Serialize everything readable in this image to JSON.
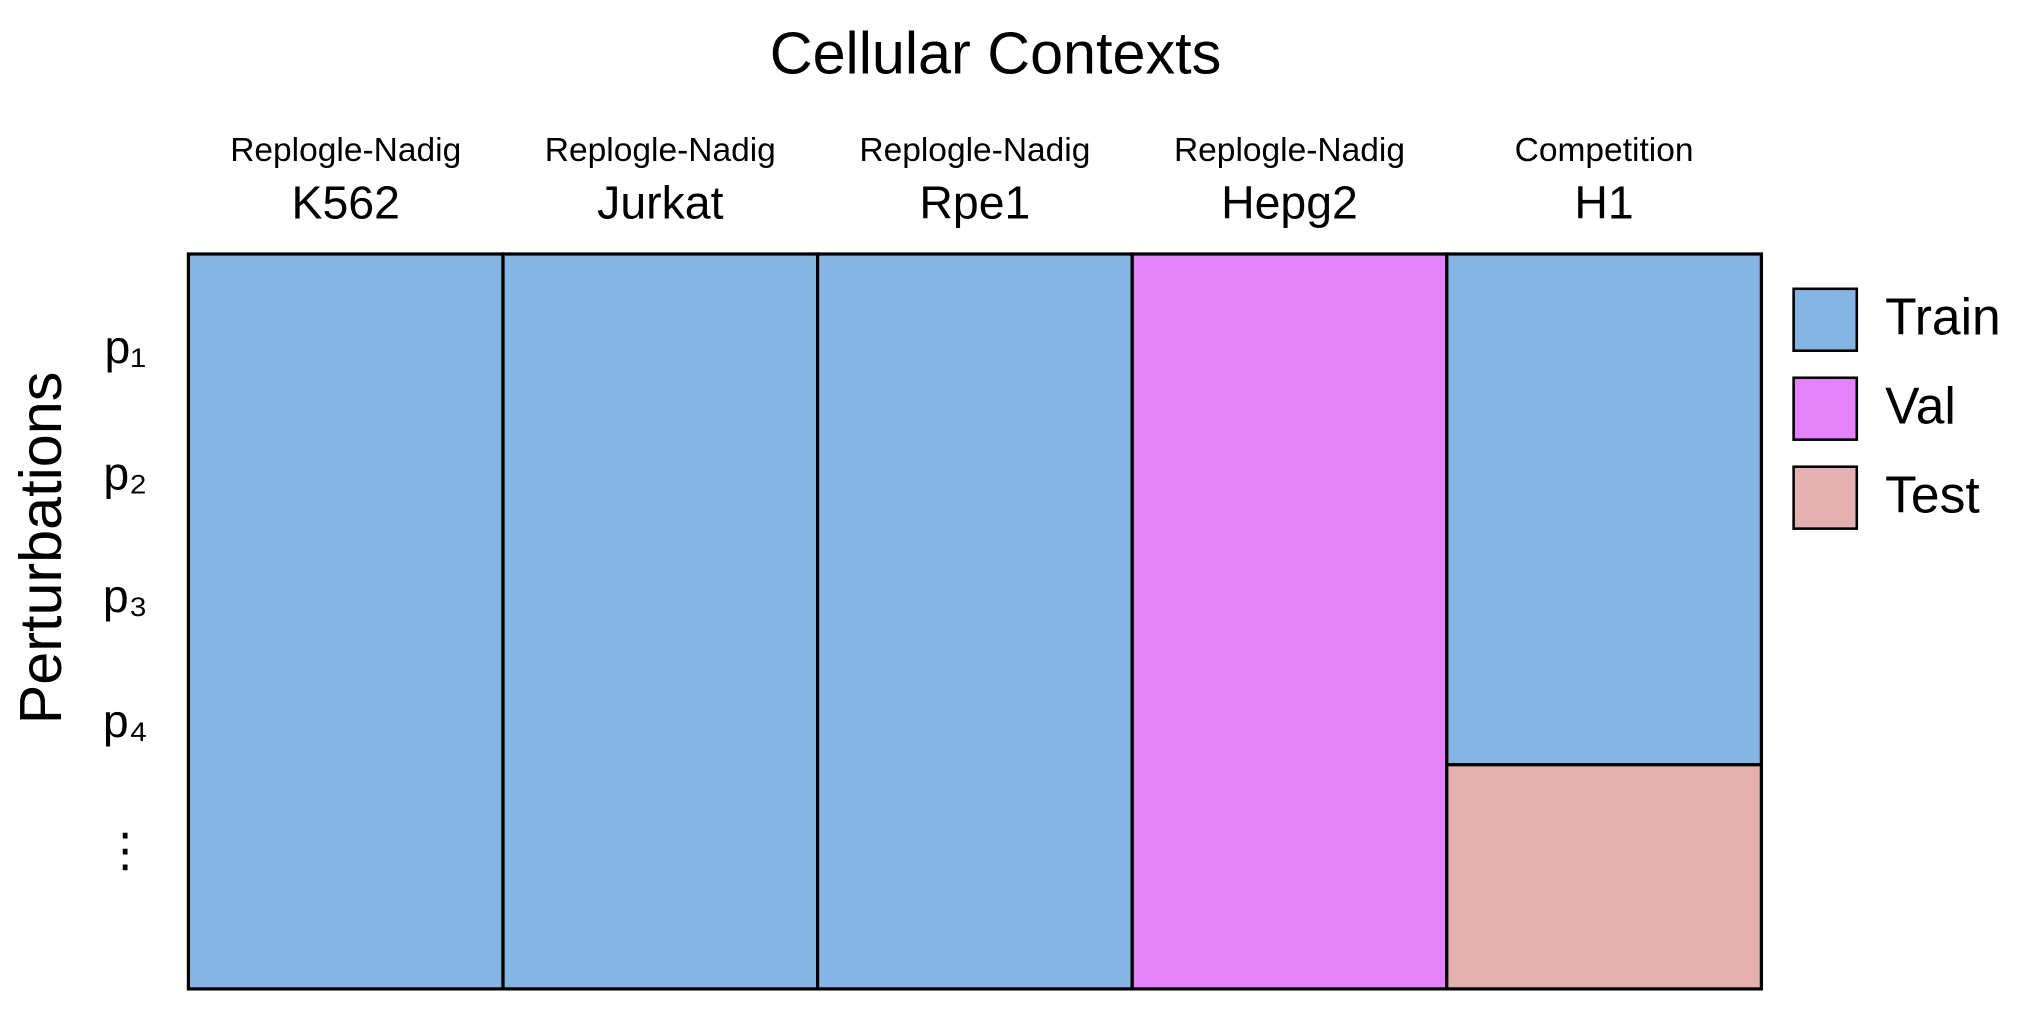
{
  "title": "Cellular Contexts",
  "y_label": "Perturbations",
  "rows": [
    "p₁",
    "p₂",
    "p₃",
    "p₄",
    "⋮"
  ],
  "columns": [
    {
      "source": "Replogle-Nadig",
      "name": "K562",
      "split": [
        "Train"
      ]
    },
    {
      "source": "Replogle-Nadig",
      "name": "Jurkat",
      "split": [
        "Train"
      ]
    },
    {
      "source": "Replogle-Nadig",
      "name": "Rpe1",
      "split": [
        "Train"
      ]
    },
    {
      "source": "Replogle-Nadig",
      "name": "Hepg2",
      "split": [
        "Val"
      ]
    },
    {
      "source": "Competition",
      "name": "H1",
      "split": [
        "Train",
        "Test"
      ]
    }
  ],
  "legend": [
    {
      "name": "Train",
      "color": "#85b5e3"
    },
    {
      "name": "Val",
      "color": "#e482fb"
    },
    {
      "name": "Test",
      "color": "#e4b1b0"
    }
  ]
}
